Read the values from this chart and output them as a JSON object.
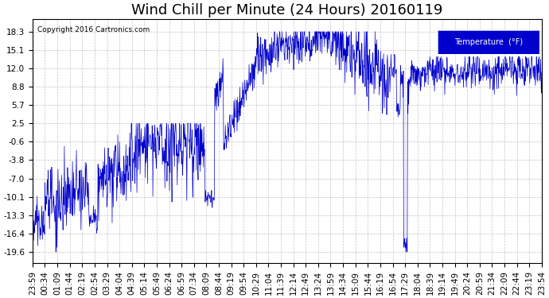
{
  "title": "Wind Chill per Minute (24 Hours) 20160119",
  "copyright": "Copyright 2016 Cartronics.com",
  "legend_label": "Temperature  (°F)",
  "yticks": [
    18.3,
    15.1,
    12.0,
    8.8,
    5.7,
    2.5,
    -0.6,
    -3.8,
    -7.0,
    -10.1,
    -13.3,
    -16.4,
    -19.6
  ],
  "ylim": [
    -21.5,
    20.5
  ],
  "line_color": "#0000cc",
  "background_color": "#ffffff",
  "grid_color": "#aaaaaa",
  "title_fontsize": 13,
  "axis_fontsize": 7.5,
  "xtick_labels": [
    "23:59",
    "00:34",
    "01:09",
    "01:44",
    "02:19",
    "02:54",
    "03:29",
    "04:04",
    "04:39",
    "05:14",
    "05:49",
    "06:24",
    "06:59",
    "07:34",
    "08:09",
    "08:44",
    "09:19",
    "09:54",
    "10:29",
    "11:04",
    "11:39",
    "12:14",
    "12:49",
    "13:24",
    "13:59",
    "14:34",
    "15:09",
    "15:44",
    "16:19",
    "16:54",
    "17:29",
    "18:04",
    "18:39",
    "19:14",
    "19:49",
    "20:24",
    "20:59",
    "21:34",
    "22:09",
    "22:44",
    "23:19",
    "23:54"
  ]
}
